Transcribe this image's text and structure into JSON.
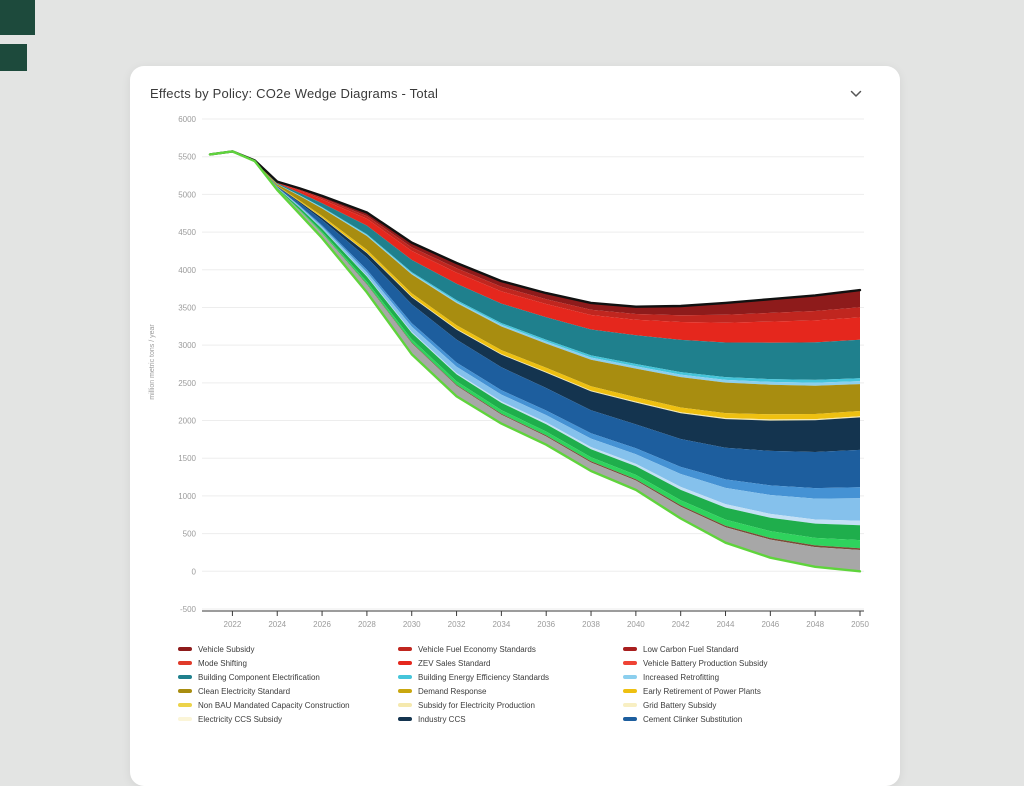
{
  "page": {
    "background": "#e3e4e3"
  },
  "decorations": {
    "squares": [
      {
        "color": "#1d4a3c"
      },
      {
        "color": "#1d4a3c"
      }
    ]
  },
  "panel": {
    "title": "Effects by Policy: CO2e Wedge Diagrams - Total",
    "collapse_icon": "chevron-down"
  },
  "chart_data": {
    "type": "area",
    "variant": "stacked-wedge-diagram",
    "title": "Effects by Policy: CO2e Wedge Diagrams - Total",
    "xlabel": "",
    "ylabel": "million metric tons / year",
    "ylim": [
      -500,
      6000
    ],
    "ytick_interval": 500,
    "yticks": [
      6000,
      5500,
      5000,
      4500,
      4000,
      3500,
      3000,
      2500,
      2000,
      1500,
      1000,
      500,
      0,
      -500
    ],
    "xticks": [
      2022,
      2024,
      2026,
      2028,
      2030,
      2032,
      2034,
      2036,
      2038,
      2040,
      2042,
      2044,
      2046,
      2048,
      2050
    ],
    "grid": true,
    "legend_position": "bottom",
    "x": [
      2021,
      2022,
      2023,
      2024,
      2025,
      2026,
      2028,
      2030,
      2032,
      2034,
      2036,
      2038,
      2040,
      2042,
      2044,
      2046,
      2048,
      2050
    ],
    "bau_top_line": {
      "name": "business-as-usual emissions (top edge)",
      "color": "#111111",
      "values": [
        5530,
        5570,
        5450,
        5170,
        5080,
        4980,
        4760,
        4360,
        4090,
        3850,
        3690,
        3560,
        3510,
        3520,
        3560,
        3610,
        3660,
        3730
      ]
    },
    "policy_bottom_line": {
      "name": "policy scenario emissions (bottom edge)",
      "color": "#5fd43c",
      "values": [
        5530,
        5570,
        5440,
        5060,
        4740,
        4420,
        3700,
        2880,
        2320,
        1960,
        1680,
        1330,
        1080,
        700,
        380,
        180,
        60,
        0
      ]
    },
    "weights_mode": "wedge weights are scaled at each x so the stack exactly fills the area between bau_top_line and policy_bottom_line",
    "wedges": [
      {
        "name": "Vehicle Subsidy",
        "color": "#8e1b1b",
        "weights": [
          0,
          0,
          1,
          6,
          15,
          25,
          45,
          60,
          70,
          78,
          85,
          95,
          105,
          130,
          160,
          185,
          210,
          230
        ]
      },
      {
        "name": "Vehicle Fuel Economy Standards",
        "color": "#c0261f",
        "weights": [
          0,
          0,
          1,
          4,
          10,
          18,
          32,
          45,
          55,
          62,
          68,
          75,
          82,
          95,
          108,
          118,
          126,
          135
        ]
      },
      {
        "name": "Mode Shifting / ZEV / Low Carbon Fuel (red transport band)",
        "color": "#e5271d",
        "weights": [
          0,
          0,
          1,
          8,
          25,
          45,
          85,
          115,
          145,
          165,
          185,
          205,
          225,
          250,
          270,
          285,
          295,
          300
        ]
      },
      {
        "name": "Building Component Electrification",
        "color": "#1f808d",
        "weights": [
          0,
          0,
          1,
          8,
          25,
          50,
          105,
          155,
          215,
          265,
          315,
          365,
          415,
          450,
          470,
          490,
          505,
          515
        ]
      },
      {
        "name": "Building Energy Efficiency Standards",
        "color": "#45c5da",
        "weights": [
          0,
          0,
          0,
          2,
          4,
          7,
          11,
          15,
          19,
          23,
          27,
          30,
          33,
          35,
          37,
          38,
          39,
          40
        ]
      },
      {
        "name": "Increased Retrofitting",
        "color": "#8ccfee",
        "weights": [
          0,
          0,
          0,
          2,
          4,
          7,
          11,
          15,
          19,
          23,
          27,
          30,
          33,
          35,
          37,
          38,
          39,
          40
        ]
      },
      {
        "name": "Clean Electricity Standard",
        "color": "#a88d10",
        "weights": [
          0,
          0,
          1,
          15,
          50,
          90,
          170,
          240,
          290,
          320,
          340,
          375,
          415,
          425,
          415,
          400,
          380,
          360
        ]
      },
      {
        "name": "Early Retirement of Power Plants",
        "color": "#eec011",
        "weights": [
          0,
          0,
          1,
          4,
          12,
          20,
          35,
          42,
          48,
          53,
          57,
          60,
          62,
          65,
          66,
          68,
          69,
          70
        ]
      },
      {
        "name": "Subsidy for Electricity Production (pale band)",
        "color": "#f5e9ae",
        "weights": [
          0,
          0,
          0,
          1,
          2,
          4,
          6,
          8,
          10,
          11,
          12,
          13,
          14,
          15,
          15,
          16,
          16,
          16
        ]
      },
      {
        "name": "Industry CCS",
        "color": "#14344f",
        "weights": [
          0,
          0,
          1,
          4,
          12,
          25,
          55,
          90,
          130,
          170,
          215,
          265,
          315,
          360,
          390,
          410,
          425,
          435
        ]
      },
      {
        "name": "Cement Clinker Substitution",
        "color": "#1d5e9e",
        "weights": [
          0,
          0,
          1,
          8,
          30,
          65,
          150,
          240,
          300,
          310,
          315,
          325,
          345,
          390,
          430,
          465,
          485,
          500
        ]
      },
      {
        "name": "unlabeled-blue-band",
        "color": "#4592d4",
        "weights": [
          0,
          0,
          0,
          2,
          8,
          15,
          30,
          45,
          55,
          60,
          65,
          75,
          85,
          100,
          115,
          130,
          142,
          150
        ]
      },
      {
        "name": "unlabeled-light-blue-band",
        "color": "#85c1ec",
        "weights": [
          0,
          0,
          0,
          4,
          12,
          22,
          45,
          68,
          82,
          92,
          102,
          120,
          140,
          180,
          220,
          255,
          280,
          300
        ]
      },
      {
        "name": "unlabeled-pale-blue-band",
        "color": "#c4e0f5",
        "weights": [
          0,
          0,
          0,
          1,
          3,
          5,
          9,
          13,
          17,
          21,
          25,
          30,
          35,
          41,
          47,
          52,
          56,
          60
        ]
      },
      {
        "name": "unlabeled-green-band",
        "color": "#1fae4c",
        "weights": [
          0,
          0,
          0,
          6,
          20,
          35,
          62,
          82,
          92,
          98,
          104,
          114,
          124,
          144,
          164,
          180,
          192,
          200
        ]
      },
      {
        "name": "unlabeled-bright-green-band",
        "color": "#2fd35d",
        "weights": [
          0,
          0,
          0,
          3,
          10,
          17,
          30,
          40,
          45,
          49,
          53,
          57,
          62,
          72,
          82,
          92,
          100,
          108
        ]
      },
      {
        "name": "unlabeled-brown-line-band",
        "color": "#7a4a35",
        "weights": [
          0,
          0,
          0,
          1,
          2,
          4,
          7,
          9,
          11,
          13,
          15,
          17,
          19,
          20,
          21,
          22,
          23,
          25
        ]
      },
      {
        "name": "unlabeled-gray-band",
        "color": "#a7a7a7",
        "weights": [
          0,
          0,
          1,
          10,
          35,
          55,
          95,
          140,
          140,
          120,
          115,
          120,
          135,
          165,
          210,
          245,
          265,
          285
        ]
      }
    ]
  },
  "legend": {
    "columns": 3,
    "items": [
      {
        "label": "Vehicle Subsidy",
        "color": "#8e1b1b"
      },
      {
        "label": "Vehicle Fuel Economy Standards",
        "color": "#c0261f"
      },
      {
        "label": "Low Carbon Fuel Standard",
        "color": "#a81e1e"
      },
      {
        "label": "Mode Shifting",
        "color": "#e03a2a"
      },
      {
        "label": "ZEV Sales Standard",
        "color": "#e5271d"
      },
      {
        "label": "Vehicle Battery Production Subsidy",
        "color": "#ef4335"
      },
      {
        "label": "Building Component Electrification",
        "color": "#1f808d"
      },
      {
        "label": "Building Energy Efficiency Standards",
        "color": "#45c5da"
      },
      {
        "label": "Increased Retrofitting",
        "color": "#8ccfee"
      },
      {
        "label": "Clean Electricity Standard",
        "color": "#a88d10"
      },
      {
        "label": "Demand Response",
        "color": "#c9a70f"
      },
      {
        "label": "Early Retirement of Power Plants",
        "color": "#eec011"
      },
      {
        "label": "Non BAU Mandated Capacity Construction",
        "color": "#ecd34a"
      },
      {
        "label": "Subsidy for Electricity Production",
        "color": "#f5e9ae"
      },
      {
        "label": "Grid Battery Subsidy",
        "color": "#f8efc3"
      },
      {
        "label": "Electricity CCS Subsidy",
        "color": "#fbf5d8"
      },
      {
        "label": "Industry CCS",
        "color": "#14344f"
      },
      {
        "label": "Cement Clinker Substitution",
        "color": "#1d5e9e"
      }
    ]
  }
}
